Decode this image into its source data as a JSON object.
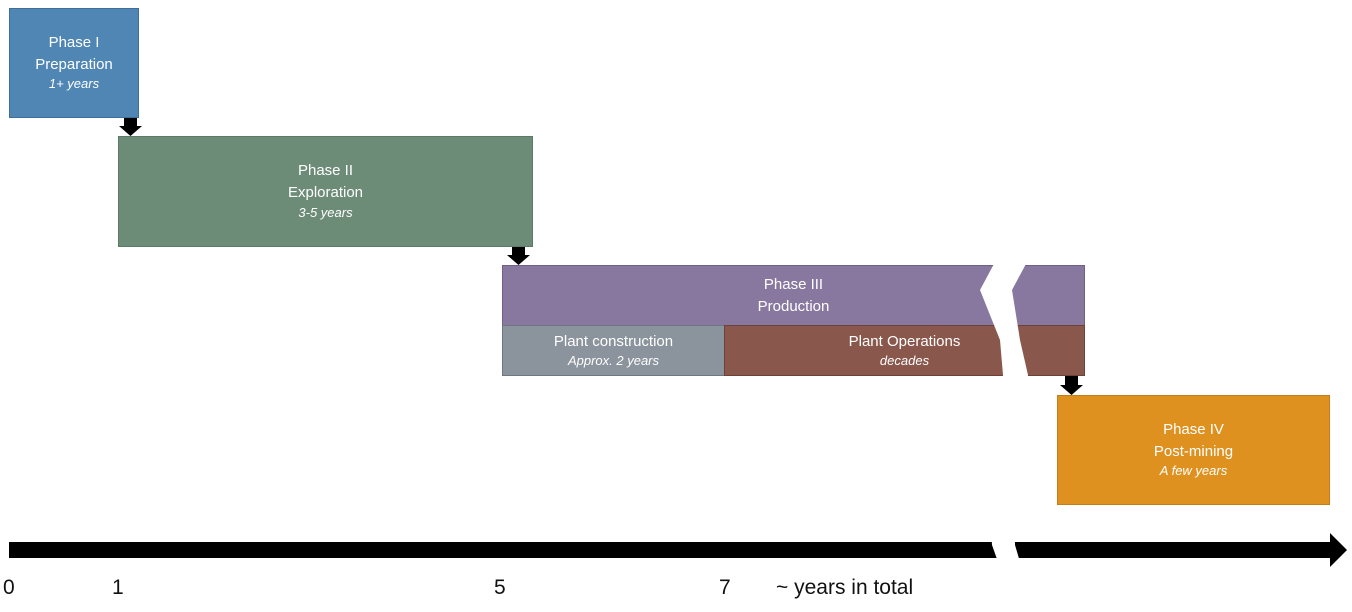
{
  "phases": {
    "p1": {
      "line1": "Phase I",
      "line2": "Preparation",
      "duration": "1+ years",
      "color": "#4f86b4"
    },
    "p2": {
      "line1": "Phase II",
      "line2": "Exploration",
      "duration": "3-5 years",
      "color": "#6d8c77"
    },
    "p3": {
      "line1": "Phase III",
      "line2": "Production",
      "color": "#8878a0",
      "sub1": {
        "label": "Plant construction",
        "duration": "Approx. 2 years",
        "color": "#8b939c"
      },
      "sub2": {
        "label": "Plant Operations",
        "duration": "decades",
        "color": "#8a574c"
      }
    },
    "p4": {
      "line1": "Phase IV",
      "line2": "Post-mining",
      "duration": "A few years",
      "color": "#df9120"
    }
  },
  "axis": {
    "ticks": [
      "0",
      "1",
      "5",
      "7"
    ],
    "label": "~ years in total"
  }
}
